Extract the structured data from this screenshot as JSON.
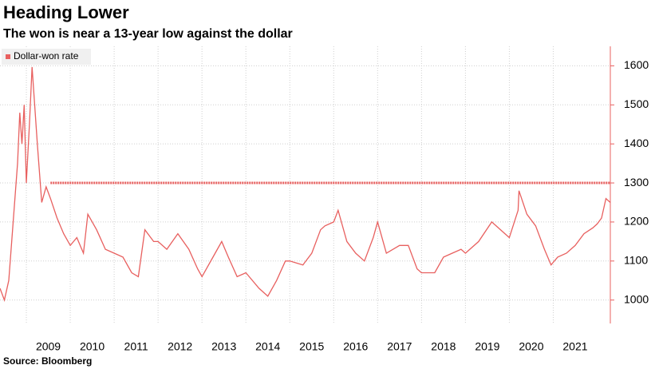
{
  "chart_data": {
    "type": "line",
    "title": "Heading Lower",
    "subtitle": "The won is near a 13-year low against the dollar",
    "source": "Source: Bloomberg",
    "x": [
      2008.4,
      2008.5,
      2008.6,
      2008.7,
      2008.8,
      2008.85,
      2008.9,
      2008.95,
      2009.0,
      2009.07,
      2009.13,
      2009.25,
      2009.35,
      2009.45,
      2009.55,
      2009.7,
      2009.85,
      2010.0,
      2010.15,
      2010.3,
      2010.4,
      2010.5,
      2010.6,
      2010.8,
      2011.0,
      2011.2,
      2011.4,
      2011.55,
      2011.7,
      2011.9,
      2012.0,
      2012.2,
      2012.45,
      2012.7,
      2012.9,
      2013.0,
      2013.3,
      2013.45,
      2013.6,
      2013.8,
      2014.0,
      2014.3,
      2014.5,
      2014.7,
      2014.9,
      2015.0,
      2015.3,
      2015.5,
      2015.7,
      2015.8,
      2016.0,
      2016.1,
      2016.3,
      2016.5,
      2016.7,
      2016.9,
      2017.0,
      2017.2,
      2017.5,
      2017.7,
      2017.9,
      2018.0,
      2018.3,
      2018.5,
      2018.7,
      2018.9,
      2019.0,
      2019.3,
      2019.6,
      2019.9,
      2020.0,
      2020.2,
      2020.22,
      2020.4,
      2020.6,
      2020.8,
      2020.95,
      2021.1,
      2021.3,
      2021.5,
      2021.7,
      2021.9,
      2022.0,
      2022.1,
      2022.2,
      2022.3
    ],
    "series": [
      {
        "name": "Dollar-won rate",
        "color": "#e8605f",
        "values": [
          1030,
          1000,
          1050,
          1200,
          1350,
          1480,
          1400,
          1500,
          1300,
          1450,
          1597,
          1400,
          1250,
          1290,
          1260,
          1210,
          1170,
          1140,
          1160,
          1120,
          1220,
          1200,
          1180,
          1130,
          1120,
          1110,
          1070,
          1060,
          1180,
          1150,
          1150,
          1130,
          1170,
          1130,
          1080,
          1060,
          1120,
          1150,
          1110,
          1060,
          1070,
          1030,
          1010,
          1050,
          1100,
          1100,
          1090,
          1120,
          1180,
          1190,
          1200,
          1230,
          1150,
          1120,
          1100,
          1160,
          1200,
          1120,
          1140,
          1140,
          1080,
          1070,
          1070,
          1110,
          1120,
          1130,
          1120,
          1150,
          1200,
          1170,
          1160,
          1230,
          1280,
          1220,
          1190,
          1130,
          1090,
          1110,
          1120,
          1140,
          1170,
          1185,
          1195,
          1210,
          1260,
          1250
        ]
      }
    ],
    "reference_line": {
      "value": 1300,
      "x_start": 2009.55
    },
    "xlim": [
      2008.4,
      2022.3
    ],
    "xticks": [
      2009,
      2010,
      2011,
      2012,
      2013,
      2014,
      2015,
      2016,
      2017,
      2018,
      2019,
      2020,
      2021
    ],
    "ylim": [
      940,
      1650
    ],
    "yticks": [
      1000,
      1100,
      1200,
      1300,
      1400,
      1500,
      1600
    ],
    "grid": true
  }
}
